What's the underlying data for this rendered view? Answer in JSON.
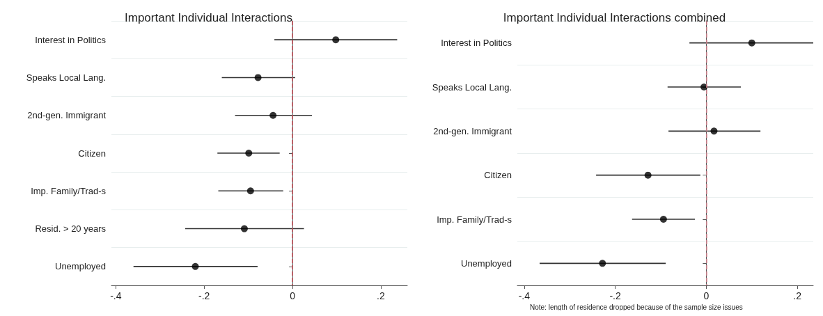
{
  "chart_data": [
    {
      "type": "scatter",
      "orientation": "horizontal",
      "title": "Important Individual Interactions",
      "categories": [
        "Interest in Politics",
        "Speaks Local Lang.",
        "2nd-gen. Immigrant",
        "Citizen",
        "Imp. Family/Trad-s",
        "Resid. > 20 years",
        "Unemployed"
      ],
      "values": [
        0.098,
        -0.078,
        -0.044,
        -0.099,
        -0.095,
        -0.109,
        -0.22
      ],
      "errors": [
        [
          -0.041,
          0.237
        ],
        [
          -0.16,
          0.006
        ],
        [
          -0.13,
          0.044
        ],
        [
          -0.17,
          -0.029
        ],
        [
          -0.168,
          -0.021
        ],
        [
          -0.243,
          0.026
        ],
        [
          -0.36,
          -0.079
        ]
      ],
      "color": "#000000",
      "marker": "circle",
      "xlim": [
        -0.41,
        0.26
      ],
      "xticks": [
        {
          "value": -0.4,
          "label": "-.4"
        },
        {
          "value": -0.2,
          "label": "-.2"
        },
        0,
        {
          "value": 0.2,
          "label": ".2"
        }
      ],
      "ref_lines": [
        {
          "axis": "x",
          "value": 0,
          "color": "#c8505a",
          "line_style": "dashed"
        }
      ],
      "grid": "y"
    },
    {
      "type": "scatter",
      "orientation": "horizontal",
      "title": "Important Individual Interactions combined",
      "categories": [
        "Interest in Politics",
        "Speaks Local Lang.",
        "2nd-gen. Immigrant",
        "Citizen",
        "Imp. Family/Trad-s",
        "Unemployed"
      ],
      "values": [
        0.1,
        -0.005,
        0.017,
        -0.128,
        -0.094,
        -0.228
      ],
      "errors": [
        [
          -0.037,
          0.235
        ],
        [
          -0.085,
          0.076
        ],
        [
          -0.083,
          0.119
        ],
        [
          -0.242,
          -0.013
        ],
        [
          -0.163,
          -0.025
        ],
        [
          -0.366,
          -0.089
        ]
      ],
      "color": "#000000",
      "marker": "circle",
      "xlim": [
        -0.415,
        0.235
      ],
      "xticks": [
        {
          "value": -0.4,
          "label": "-.4"
        },
        {
          "value": -0.2,
          "label": "-.2"
        },
        0,
        {
          "value": 0.2,
          "label": ".2"
        }
      ],
      "ref_lines": [
        {
          "axis": "x",
          "value": 0,
          "color": "#e08a96",
          "line_style": "dashed"
        }
      ],
      "annotations": [
        "Note: length of residence dropped because of the sample size issues"
      ],
      "grid": "y"
    }
  ]
}
